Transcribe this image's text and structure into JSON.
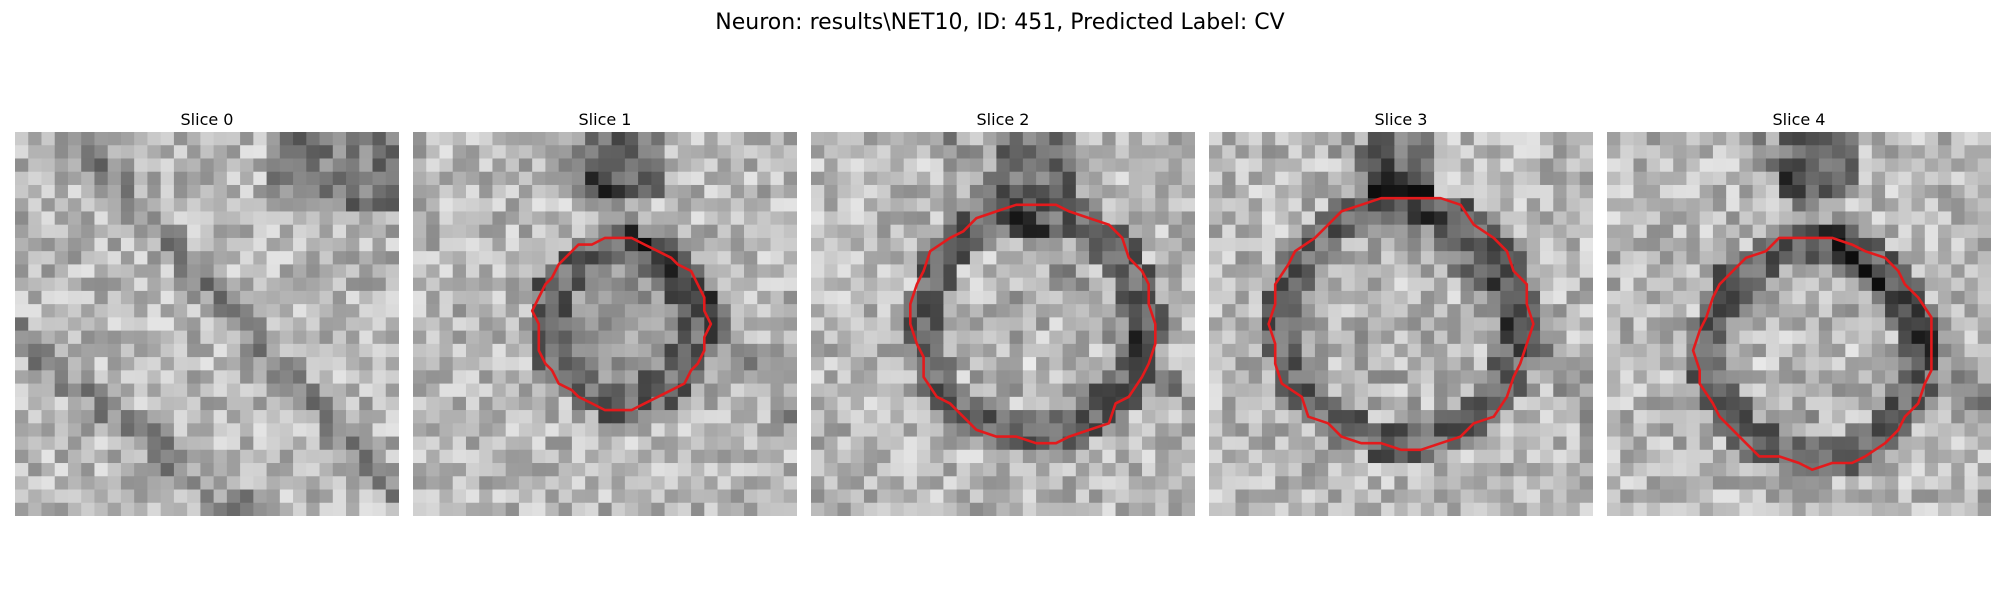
{
  "figure": {
    "title": "Neuron: results\\NET10, ID: 451, Predicted Label: CV"
  },
  "panels": [
    {
      "title": "Slice 0",
      "has_outline": false,
      "outline_center": [
        0.5,
        0.5
      ],
      "outline_radius": 0.0,
      "inner_brightness": 0.0
    },
    {
      "title": "Slice 1",
      "has_outline": true,
      "outline_center": [
        0.54,
        0.5
      ],
      "outline_radius": 0.22,
      "inner_brightness": 0.45
    },
    {
      "title": "Slice 2",
      "has_outline": true,
      "outline_center": [
        0.58,
        0.5
      ],
      "outline_radius": 0.31,
      "inner_brightness": 0.85
    },
    {
      "title": "Slice 3",
      "has_outline": true,
      "outline_center": [
        0.5,
        0.5
      ],
      "outline_radius": 0.33,
      "inner_brightness": 0.8
    },
    {
      "title": "Slice 4",
      "has_outline": true,
      "outline_center": [
        0.54,
        0.57
      ],
      "outline_radius": 0.3,
      "inner_brightness": 0.85
    }
  ],
  "colors": {
    "outline": "#e41a1c",
    "background": "#ffffff"
  }
}
